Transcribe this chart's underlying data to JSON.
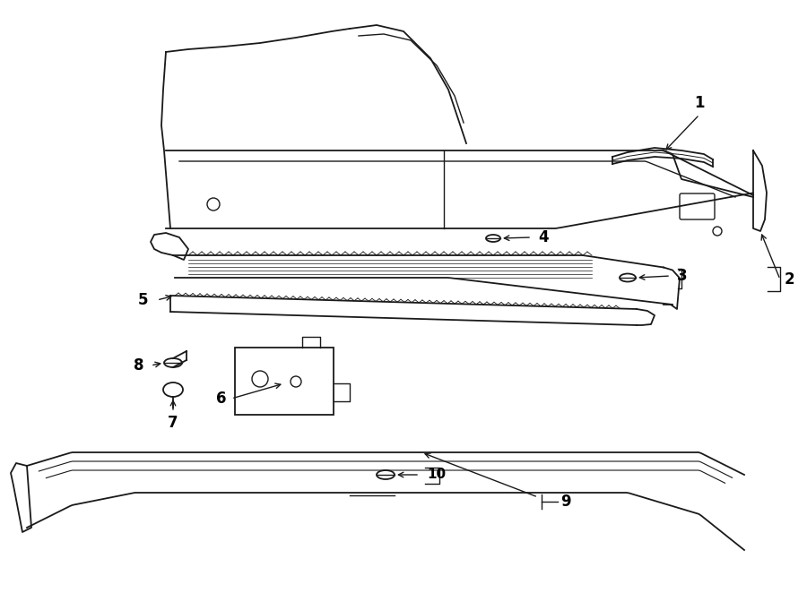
{
  "background_color": "#ffffff",
  "line_color": "#1a1a1a",
  "text_color": "#000000",
  "figsize": [
    9.0,
    6.62
  ],
  "dpi": 100
}
